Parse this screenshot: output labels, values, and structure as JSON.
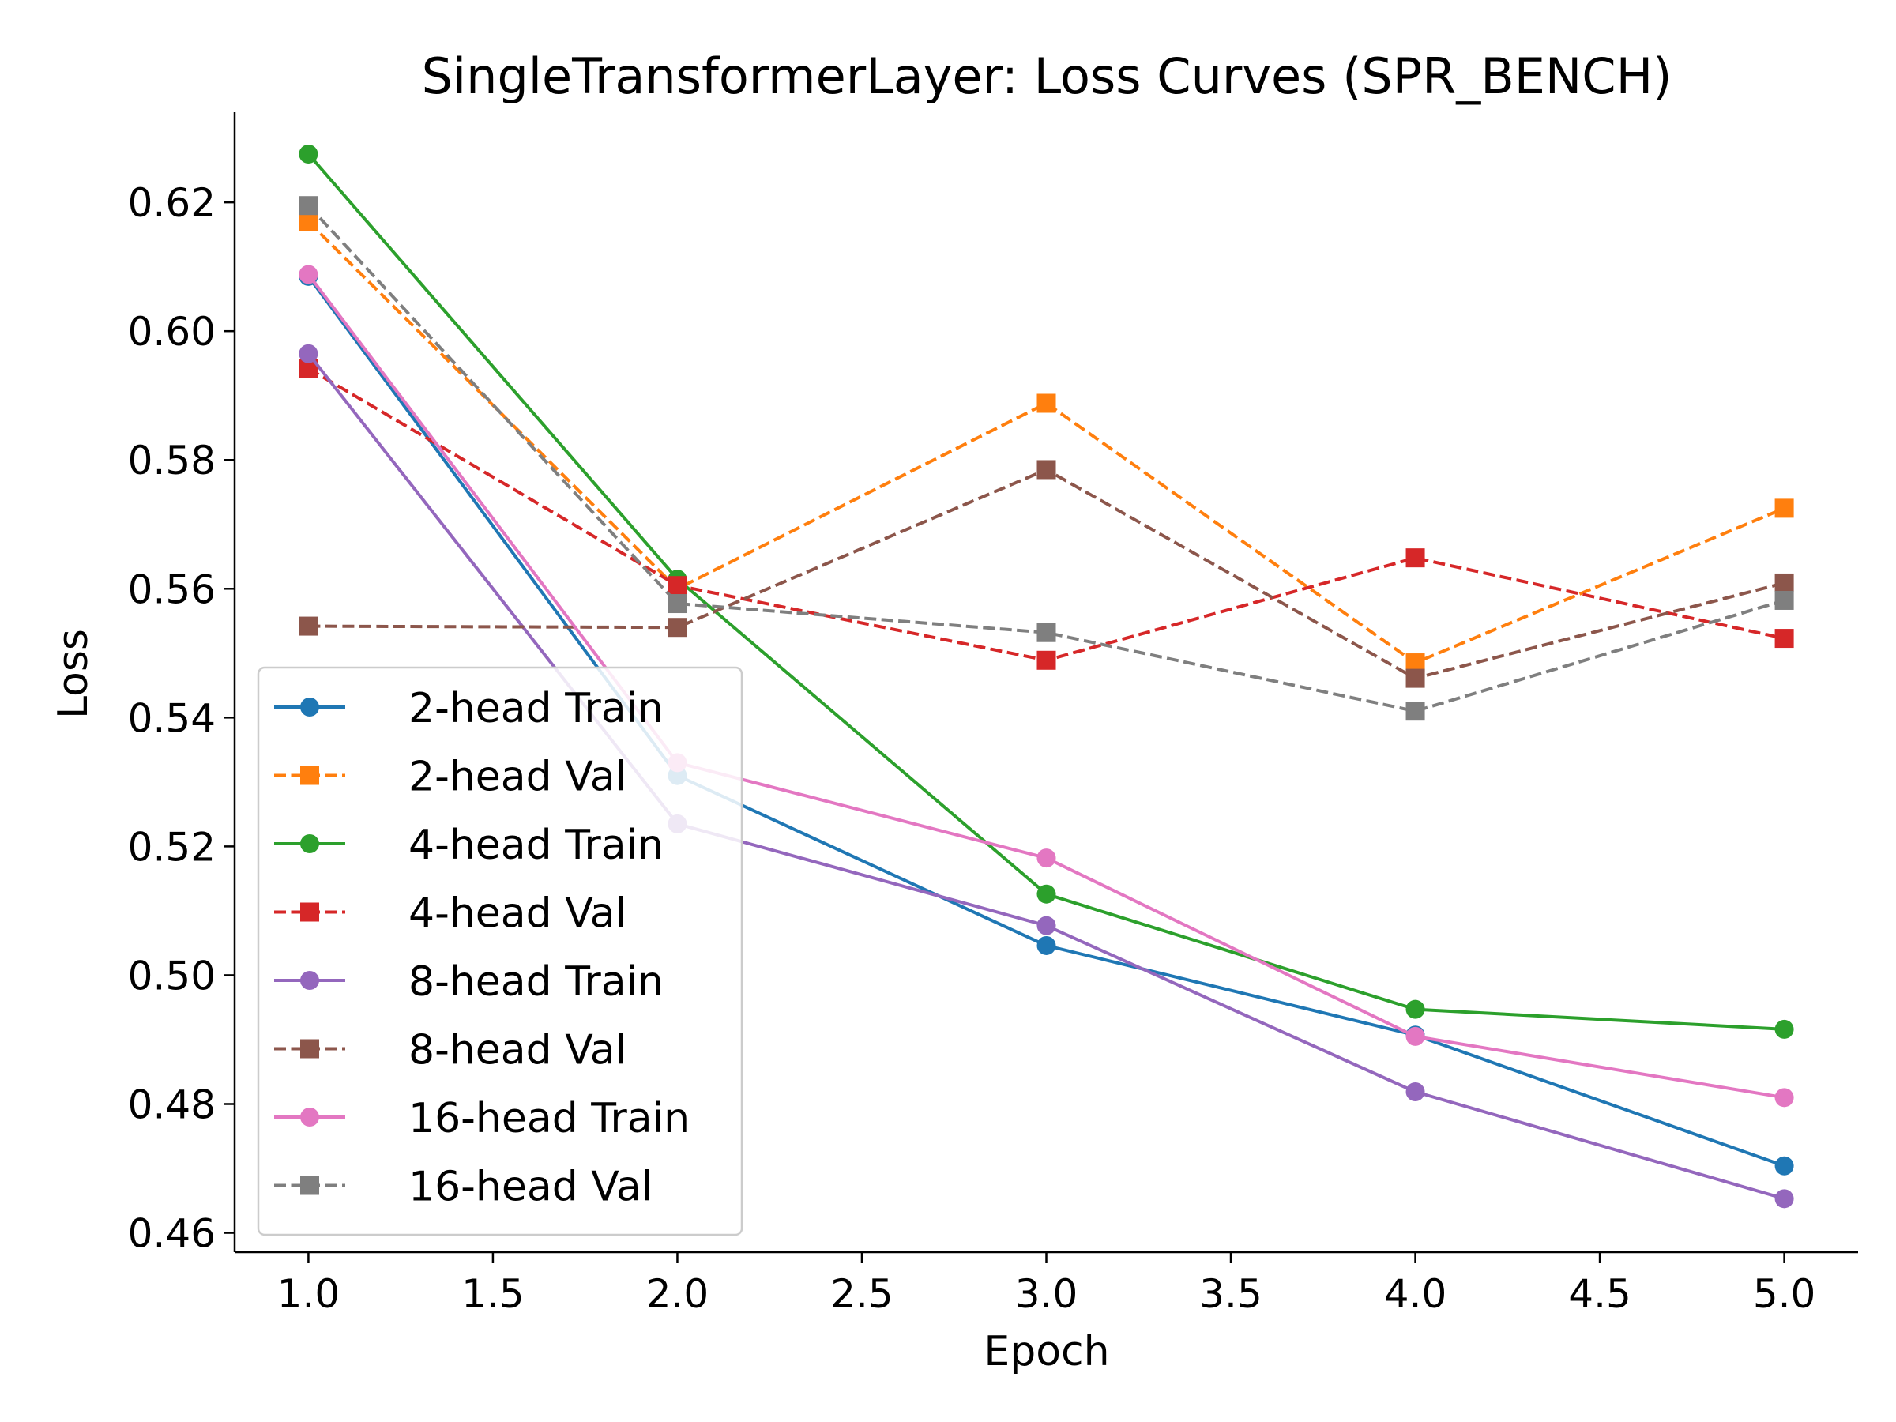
{
  "chart_data": {
    "type": "line",
    "title": "SingleTransformerLayer: Loss Curves (SPR_BENCH)",
    "xlabel": "Epoch",
    "ylabel": "Loss",
    "xlim": [
      0.8,
      5.2
    ],
    "ylim": [
      0.457,
      0.634
    ],
    "xticks": [
      1.0,
      1.5,
      2.0,
      2.5,
      3.0,
      3.5,
      4.0,
      4.5,
      5.0
    ],
    "xtick_labels": [
      "1.0",
      "1.5",
      "2.0",
      "2.5",
      "3.0",
      "3.5",
      "4.0",
      "4.5",
      "5.0"
    ],
    "yticks": [
      0.46,
      0.48,
      0.5,
      0.52,
      0.54,
      0.56,
      0.58,
      0.6,
      0.62
    ],
    "ytick_labels": [
      "0.46",
      "0.48",
      "0.50",
      "0.52",
      "0.54",
      "0.56",
      "0.58",
      "0.60",
      "0.62"
    ],
    "grid": false,
    "legend_position": "lower-left",
    "x": [
      1,
      2,
      3,
      4,
      5
    ],
    "series": [
      {
        "name": "2-head Train",
        "values": [
          0.6085,
          0.531,
          0.5046,
          0.4907,
          0.4704
        ],
        "color": "#1f77b4",
        "dash": "solid",
        "marker": "circle"
      },
      {
        "name": "2-head Val",
        "values": [
          0.617,
          0.56,
          0.5888,
          0.5485,
          0.5725
        ],
        "color": "#ff7f0e",
        "dash": "dashed",
        "marker": "square"
      },
      {
        "name": "4-head Train",
        "values": [
          0.6275,
          0.5615,
          0.5126,
          0.4947,
          0.4916
        ],
        "color": "#2ca02c",
        "dash": "solid",
        "marker": "circle"
      },
      {
        "name": "4-head Val",
        "values": [
          0.5942,
          0.5605,
          0.5489,
          0.5648,
          0.5523
        ],
        "color": "#d62728",
        "dash": "dashed",
        "marker": "square"
      },
      {
        "name": "8-head Train",
        "values": [
          0.5965,
          0.5235,
          0.5077,
          0.4819,
          0.4653
        ],
        "color": "#9467bd",
        "dash": "solid",
        "marker": "circle"
      },
      {
        "name": "8-head Val",
        "values": [
          0.5542,
          0.554,
          0.5785,
          0.5461,
          0.5609
        ],
        "color": "#8c564b",
        "dash": "dashed",
        "marker": "square"
      },
      {
        "name": "16-head Train",
        "values": [
          0.6088,
          0.533,
          0.5182,
          0.4905,
          0.481
        ],
        "color": "#e377c2",
        "dash": "solid",
        "marker": "circle"
      },
      {
        "name": "16-head Val",
        "values": [
          0.6195,
          0.5577,
          0.5532,
          0.541,
          0.5582
        ],
        "color": "#7f7f7f",
        "dash": "dashed",
        "marker": "square"
      }
    ]
  }
}
